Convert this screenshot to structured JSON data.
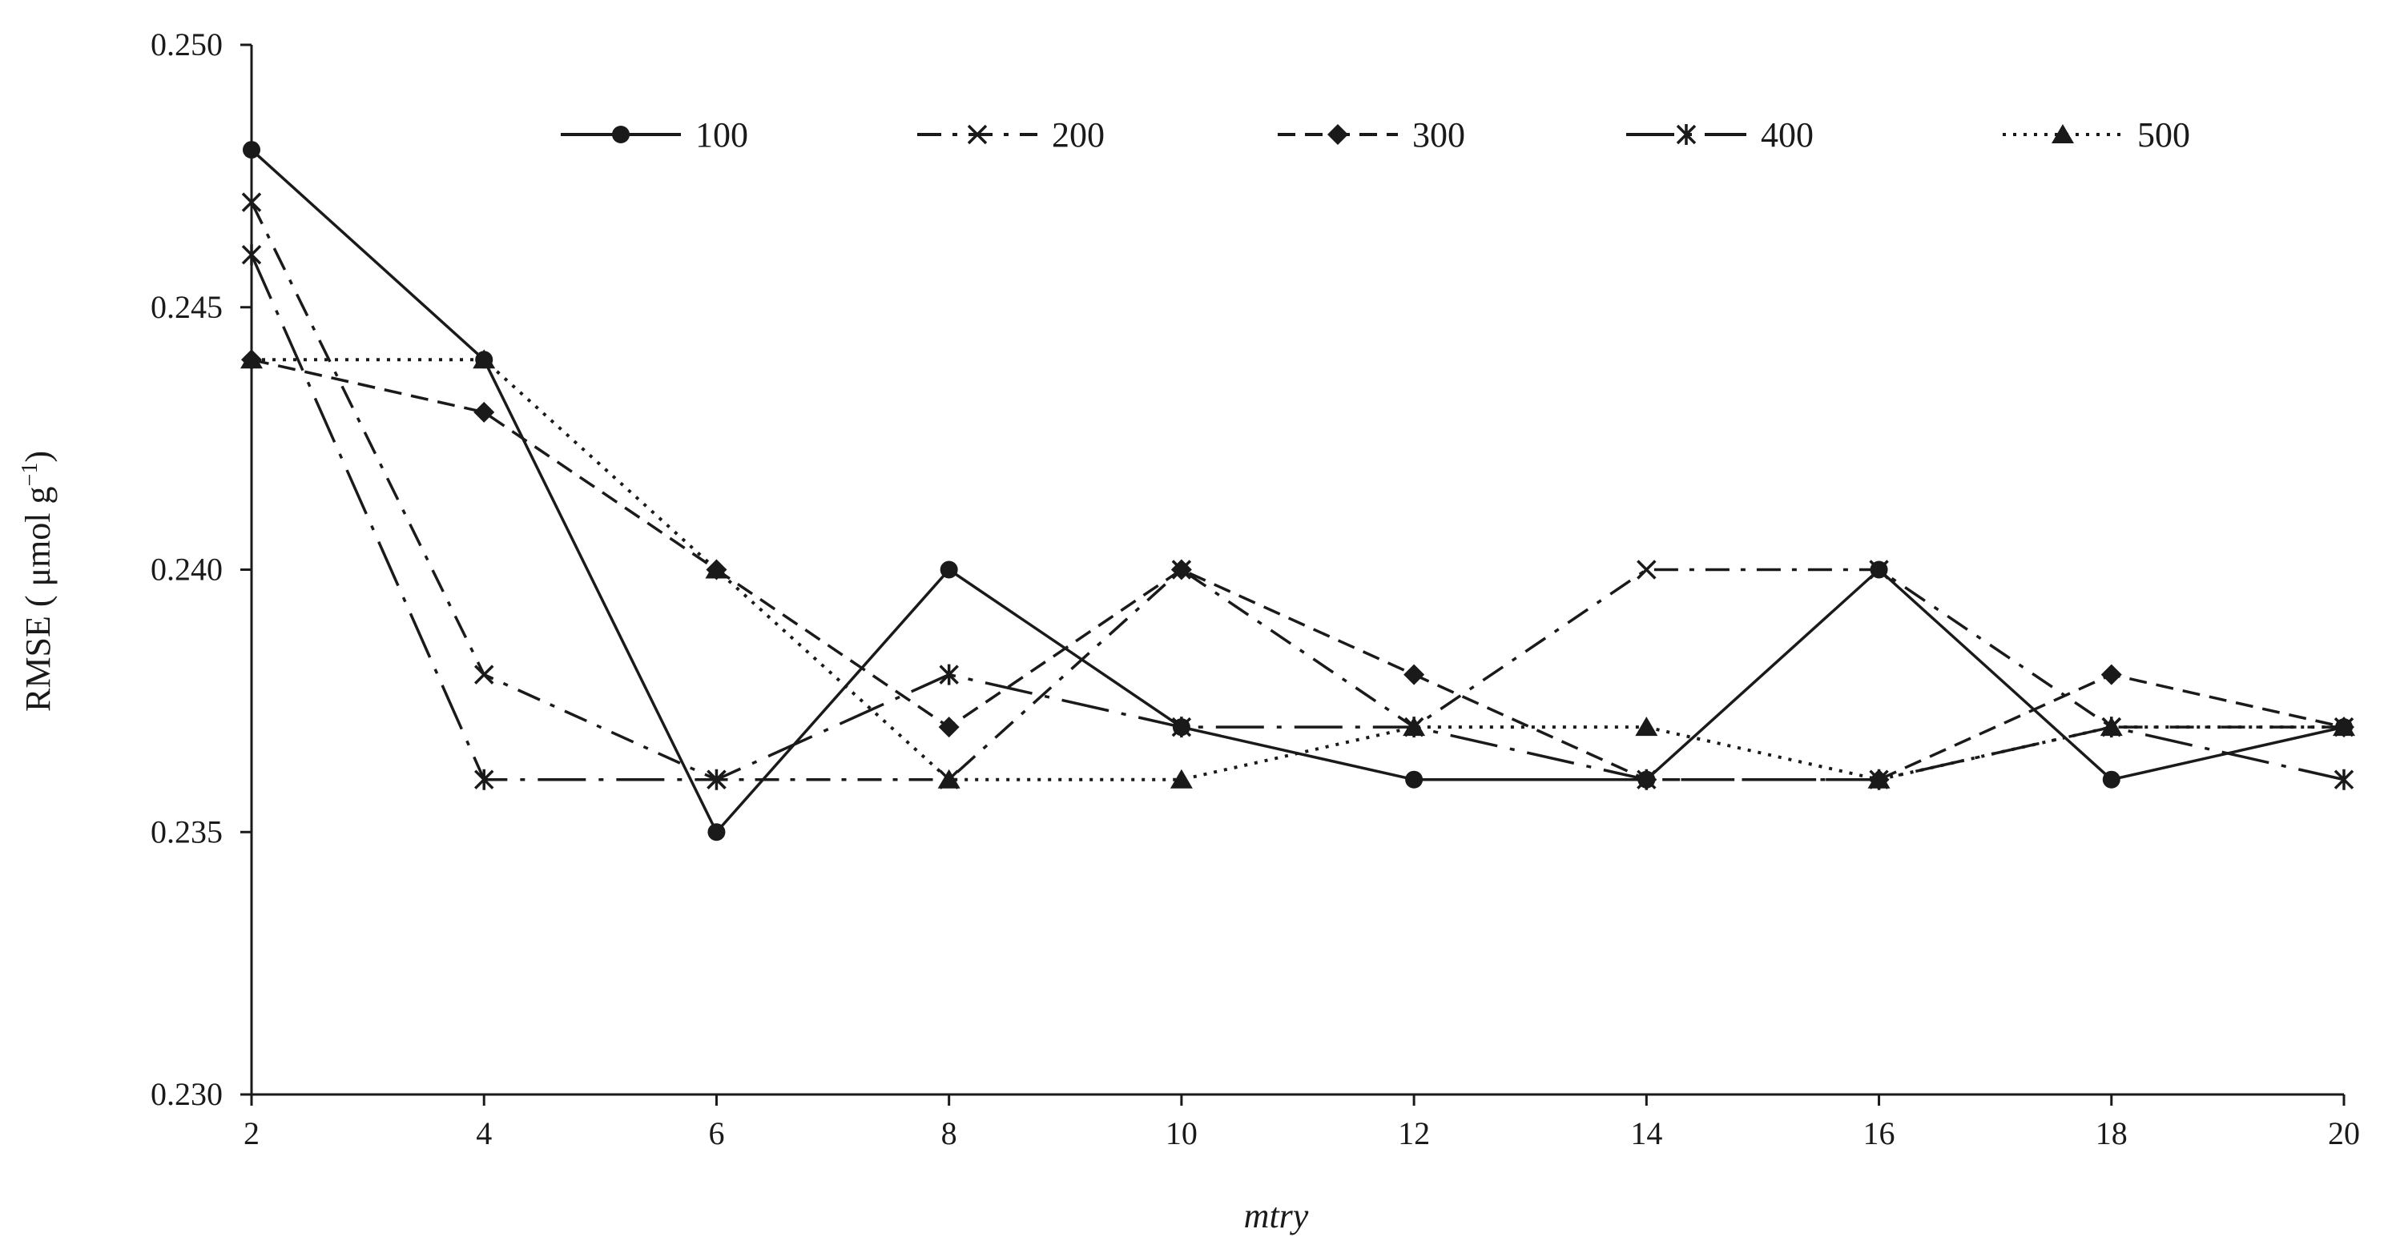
{
  "chart_data": {
    "type": "line",
    "title": "",
    "xlabel": "mtry",
    "ylabel": "RMSE ( μmol g",
    "ylabel_sup": "−1",
    "ylabel_close": ")",
    "x": [
      2,
      4,
      6,
      8,
      10,
      12,
      14,
      16,
      18,
      20
    ],
    "xlim": [
      2,
      20
    ],
    "ylim": [
      0.23,
      0.25
    ],
    "yticks": [
      "0.230",
      "0.235",
      "0.240",
      "0.245",
      "0.250"
    ],
    "xticks": [
      "2",
      "4",
      "6",
      "8",
      "10",
      "12",
      "14",
      "16",
      "18",
      "20"
    ],
    "legend_position": "top",
    "series": [
      {
        "name": "100",
        "values": [
          0.248,
          0.244,
          0.235,
          0.24,
          0.237,
          0.236,
          0.236,
          0.24,
          0.236,
          0.237
        ],
        "line_style": "solid",
        "marker": "circle"
      },
      {
        "name": "200",
        "values": [
          0.247,
          0.238,
          0.236,
          0.236,
          0.24,
          0.237,
          0.24,
          0.24,
          0.237,
          0.237
        ],
        "line_style": "dash-dot",
        "marker": "x"
      },
      {
        "name": "300",
        "values": [
          0.244,
          0.243,
          0.24,
          0.237,
          0.24,
          0.238,
          0.236,
          0.236,
          0.238,
          0.237
        ],
        "line_style": "dashed",
        "marker": "diamond"
      },
      {
        "name": "400",
        "values": [
          0.246,
          0.236,
          0.236,
          0.238,
          0.237,
          0.237,
          0.236,
          0.236,
          0.237,
          0.236
        ],
        "line_style": "long-dash-dot",
        "marker": "asterisk"
      },
      {
        "name": "500",
        "values": [
          0.244,
          0.244,
          0.24,
          0.236,
          0.236,
          0.237,
          0.237,
          0.236,
          0.237,
          0.237
        ],
        "line_style": "dotted",
        "marker": "triangle"
      }
    ],
    "colors": {
      "line": "#1a1a1a",
      "axis": "#1a1a1a",
      "background": "#ffffff"
    }
  }
}
